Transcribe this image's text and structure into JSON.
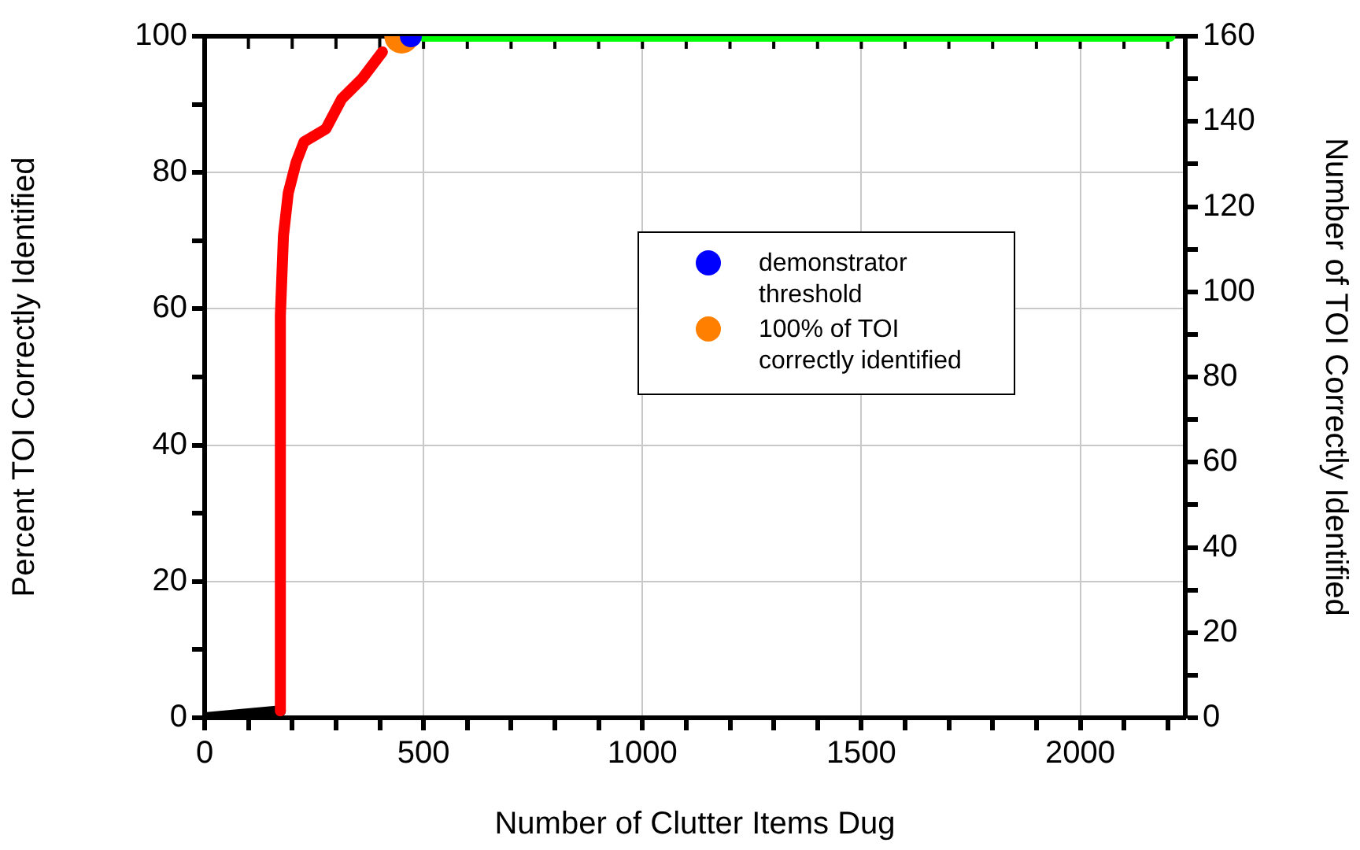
{
  "chart_data": {
    "type": "line",
    "xlabel": "Number of Clutter Items Dug",
    "ylabel": "Percent TOI Correctly Identified",
    "y2label": "Number of TOI Correctly Identified",
    "xlim": [
      0,
      2240
    ],
    "ylim": [
      0,
      100
    ],
    "y2lim": [
      0,
      160
    ],
    "xticks": [
      0,
      {
        "value": 100,
        "label": null
      },
      {
        "value": 200,
        "label": null
      },
      {
        "value": 300,
        "label": null
      },
      {
        "value": 400,
        "label": null
      },
      500,
      {
        "value": 600,
        "label": null
      },
      {
        "value": 700,
        "label": null
      },
      {
        "value": 800,
        "label": null
      },
      {
        "value": 900,
        "label": null
      },
      1000,
      {
        "value": 1100,
        "label": null
      },
      {
        "value": 1200,
        "label": null
      },
      {
        "value": 1300,
        "label": null
      },
      {
        "value": 1400,
        "label": null
      },
      1500,
      {
        "value": 1600,
        "label": null
      },
      {
        "value": 1700,
        "label": null
      },
      {
        "value": 1800,
        "label": null
      },
      {
        "value": 1900,
        "label": null
      },
      2000,
      {
        "value": 2100,
        "label": null
      },
      {
        "value": 2200,
        "label": null
      }
    ],
    "yticks": [
      0,
      {
        "value": 10,
        "label": null
      },
      20,
      {
        "value": 30,
        "label": null
      },
      40,
      {
        "value": 50,
        "label": null
      },
      60,
      {
        "value": 70,
        "label": null
      },
      80,
      {
        "value": 90,
        "label": null
      },
      100
    ],
    "y2ticks": [
      0,
      {
        "value": 10,
        "label": null
      },
      20,
      {
        "value": 30,
        "label": null
      },
      40,
      {
        "value": 50,
        "label": null
      },
      60,
      {
        "value": 70,
        "label": null
      },
      80,
      {
        "value": 90,
        "label": null
      },
      100,
      {
        "value": 110,
        "label": null
      },
      120,
      {
        "value": 130,
        "label": null
      },
      140,
      {
        "value": 150,
        "label": null
      },
      160
    ],
    "grid": true,
    "legend": "right",
    "marker": "none",
    "line_style": "solid",
    "series": [
      {
        "color": "#000000",
        "x": [
          0,
          173
        ],
        "values": [
          0,
          1
        ]
      },
      {
        "color": "#ff0000",
        "x": [
          173,
          173,
          180,
          191,
          209,
          227,
          277,
          313,
          360,
          406
        ],
        "values": [
          1,
          59,
          70.7,
          77,
          81.5,
          84.5,
          86.4,
          90.8,
          93.8,
          97.7
        ]
      },
      {
        "color": "#00ff00",
        "x": [
          500,
          2205
        ],
        "values": [
          100,
          100
        ]
      },
      {
        "type": "scatter",
        "marker": "circle",
        "name": "100% of TOI correctly identified",
        "color": "#ff8000",
        "x": [
          450
        ],
        "values": [
          100
        ]
      },
      {
        "type": "scatter",
        "marker": "circle",
        "name": "demonstrator threshold",
        "color": "#0000ff",
        "x": [
          471
        ],
        "values": [
          100
        ]
      }
    ]
  }
}
